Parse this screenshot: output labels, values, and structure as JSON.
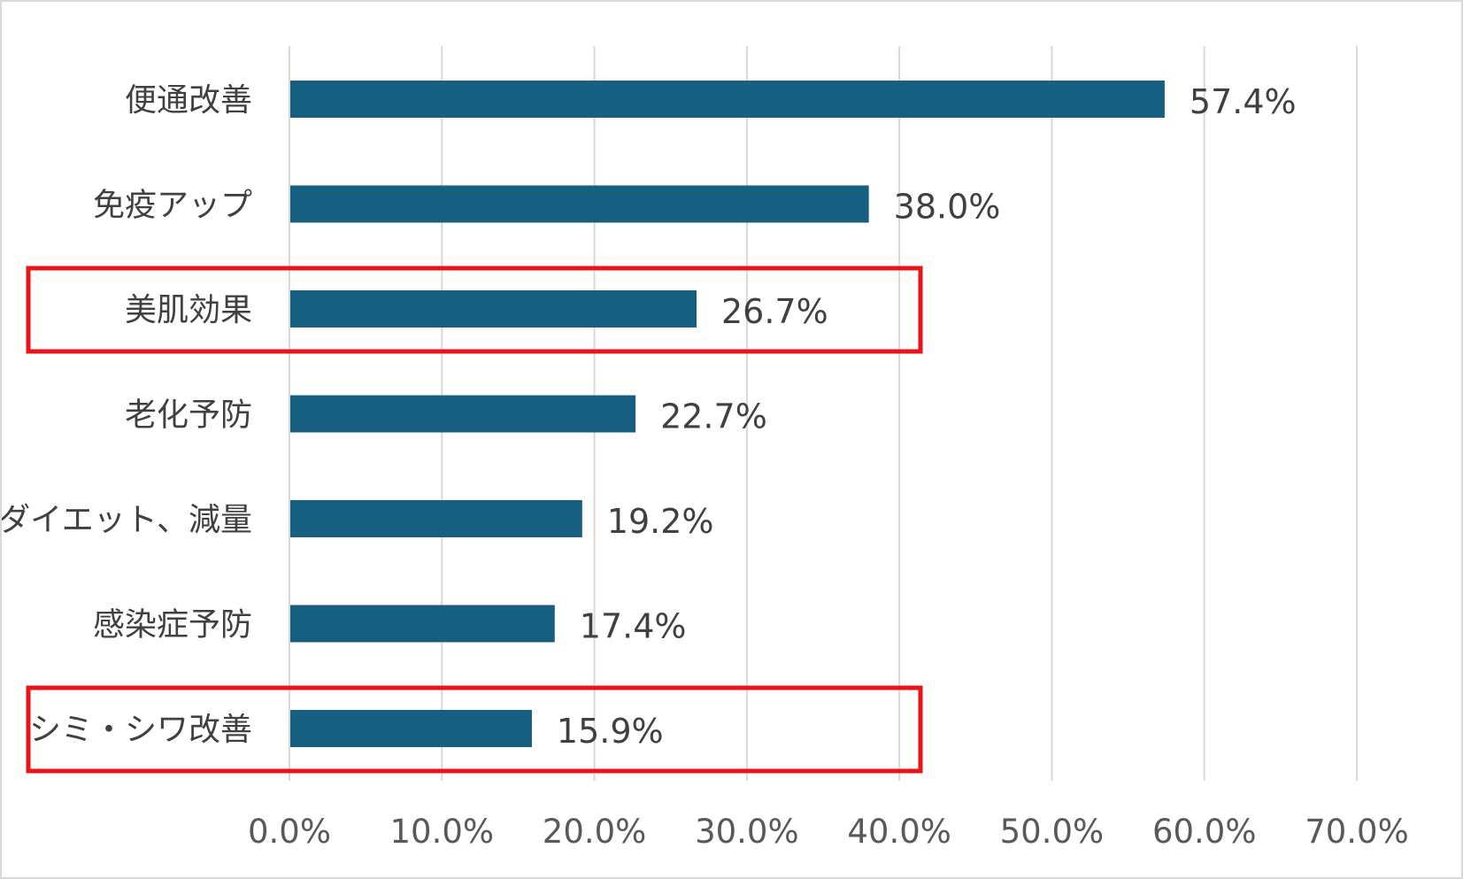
{
  "chart_data": {
    "type": "bar",
    "orientation": "horizontal",
    "categories": [
      "便通改善",
      "免疫アップ",
      "美肌効果",
      "老化予防",
      "ダイエット、減量",
      "感染症予防",
      "シミ・シワ改善"
    ],
    "values": [
      57.4,
      38.0,
      26.7,
      22.7,
      19.2,
      17.4,
      15.9
    ],
    "value_labels": [
      "57.4%",
      "38.0%",
      "26.7%",
      "22.7%",
      "19.2%",
      "17.4%",
      "15.9%"
    ],
    "xlim": [
      0,
      70
    ],
    "xticks": [
      0,
      10,
      20,
      30,
      40,
      50,
      60,
      70
    ],
    "xtick_labels": [
      "0.0%",
      "10.0%",
      "20.0%",
      "30.0%",
      "40.0%",
      "50.0%",
      "60.0%",
      "70.0%"
    ],
    "grid": "vertical",
    "highlighted_categories": [
      "美肌効果",
      "シミ・シワ改善"
    ],
    "colors": {
      "bar": "#175f80",
      "highlight": "#e8141a",
      "grid": "#d9d9d9"
    }
  }
}
